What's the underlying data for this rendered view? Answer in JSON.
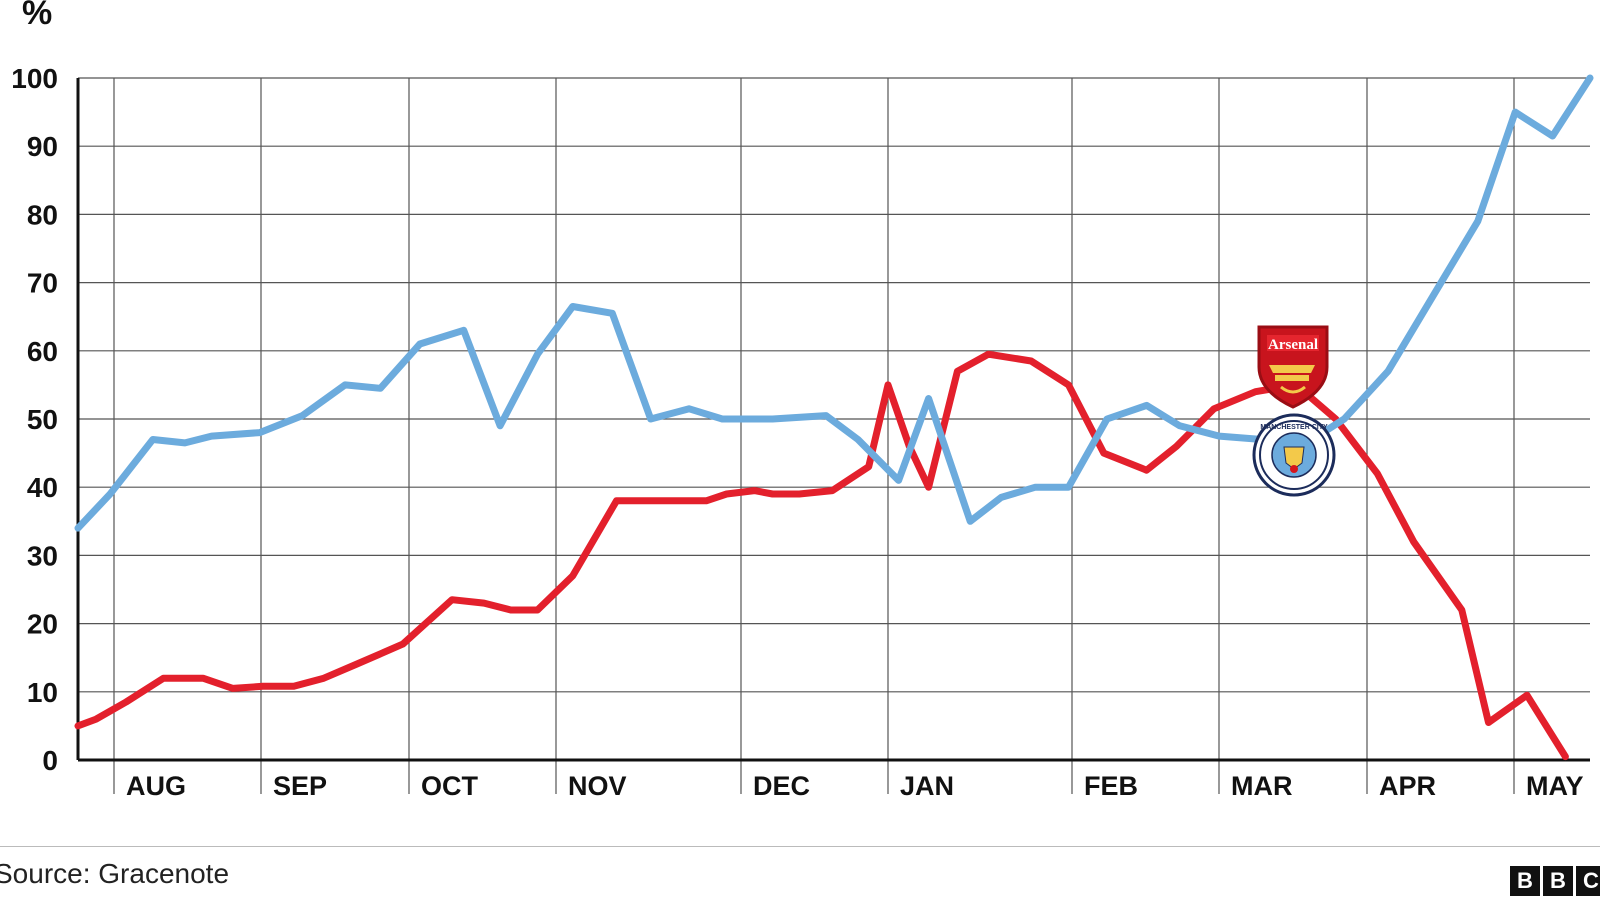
{
  "source_text": "Source: Gracenote",
  "chart_data": {
    "type": "line",
    "unit_label": "%",
    "ylim": [
      0,
      100
    ],
    "yticks": [
      0,
      10,
      20,
      30,
      40,
      50,
      60,
      70,
      80,
      90,
      100
    ],
    "xticks": [
      "AUG",
      "SEP",
      "OCT",
      "NOV",
      "DEC",
      "JAN",
      "FEB",
      "MAR",
      "APR",
      "MAY"
    ],
    "grid": true,
    "series": [
      {
        "color": "#e3202c",
        "logo_text": "Arsenal",
        "points": [
          [
            0,
            5
          ],
          [
            0.17,
            6
          ],
          [
            0.45,
            8.5
          ],
          [
            0.8,
            12
          ],
          [
            1.17,
            12
          ],
          [
            1.45,
            10.5
          ],
          [
            1.73,
            10.8
          ],
          [
            2.02,
            10.8
          ],
          [
            2.3,
            12
          ],
          [
            2.6,
            14
          ],
          [
            3.04,
            17
          ],
          [
            3.5,
            23.5
          ],
          [
            3.8,
            23
          ],
          [
            4.05,
            22
          ],
          [
            4.3,
            22
          ],
          [
            4.63,
            27
          ],
          [
            5.04,
            38
          ],
          [
            5.35,
            38
          ],
          [
            5.6,
            38
          ],
          [
            5.88,
            38
          ],
          [
            6.07,
            39
          ],
          [
            6.33,
            39.5
          ],
          [
            6.5,
            39
          ],
          [
            6.75,
            39
          ],
          [
            7.06,
            39.5
          ],
          [
            7.4,
            43
          ],
          [
            7.58,
            55
          ],
          [
            7.78,
            46
          ],
          [
            7.96,
            40
          ],
          [
            8.23,
            57
          ],
          [
            8.52,
            59.5
          ],
          [
            8.92,
            58.5
          ],
          [
            9.27,
            55
          ],
          [
            9.6,
            45
          ],
          [
            10.0,
            42.5
          ],
          [
            10.28,
            46
          ],
          [
            10.63,
            51.5
          ],
          [
            11.02,
            54
          ],
          [
            11.4,
            55
          ],
          [
            11.77,
            50
          ],
          [
            12.16,
            42
          ],
          [
            12.5,
            32
          ],
          [
            12.95,
            22
          ],
          [
            13.2,
            5.5
          ],
          [
            13.56,
            9.5
          ],
          [
            13.92,
            0.5
          ]
        ]
      },
      {
        "color": "#6cabdd",
        "logo_text": "MANCHESTER CITY",
        "points": [
          [
            0,
            34
          ],
          [
            0.3,
            39
          ],
          [
            0.7,
            47
          ],
          [
            1.0,
            46.5
          ],
          [
            1.25,
            47.5
          ],
          [
            1.7,
            48
          ],
          [
            2.1,
            50.5
          ],
          [
            2.5,
            55
          ],
          [
            2.83,
            54.5
          ],
          [
            3.2,
            61
          ],
          [
            3.61,
            63
          ],
          [
            3.95,
            49
          ],
          [
            4.3,
            59.5
          ],
          [
            4.63,
            66.5
          ],
          [
            5.0,
            65.5
          ],
          [
            5.36,
            50
          ],
          [
            5.72,
            51.5
          ],
          [
            6.03,
            50
          ],
          [
            6.5,
            50
          ],
          [
            7.0,
            50.5
          ],
          [
            7.3,
            47
          ],
          [
            7.68,
            41
          ],
          [
            7.96,
            53
          ],
          [
            8.35,
            35
          ],
          [
            8.64,
            38.5
          ],
          [
            8.96,
            40
          ],
          [
            9.27,
            40
          ],
          [
            9.63,
            50
          ],
          [
            10.0,
            52
          ],
          [
            10.31,
            49
          ],
          [
            10.68,
            47.5
          ],
          [
            11.08,
            47
          ],
          [
            11.45,
            46
          ],
          [
            11.85,
            50
          ],
          [
            12.26,
            57
          ],
          [
            12.68,
            68
          ],
          [
            13.1,
            79
          ],
          [
            13.45,
            95
          ],
          [
            13.8,
            91.5
          ],
          [
            14.15,
            100
          ]
        ]
      }
    ]
  },
  "logos": {
    "arsenal": {
      "text": "Arsenal",
      "color": "#d5151c"
    },
    "man_city": {
      "text": "MANCHESTER CITY",
      "color": "#6cabdd"
    }
  },
  "brand": {
    "letters": [
      "B",
      "B",
      "C"
    ]
  }
}
